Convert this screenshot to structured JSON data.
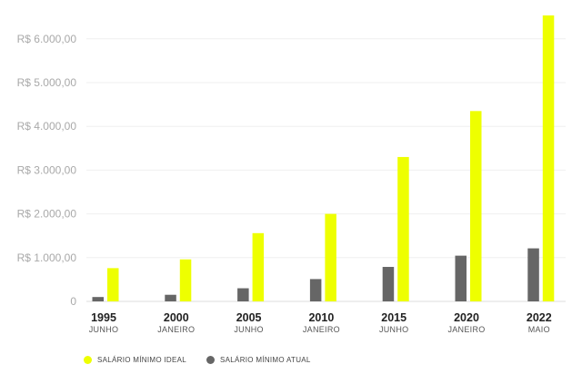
{
  "chart_data": {
    "type": "bar",
    "categories": [
      "1995",
      "2000",
      "2005",
      "2010",
      "2015",
      "2020",
      "2022"
    ],
    "category_sublabels": [
      "JUNHO",
      "JANEIRO",
      "JUNHO",
      "JANEIRO",
      "JUNHO",
      "JANEIRO",
      "MAIO"
    ],
    "series": [
      {
        "name": "SALÁRIO MÍNIMO ATUAL",
        "color": "#666666",
        "values": [
          100,
          151,
          300,
          510,
          788,
          1045,
          1212
        ]
      },
      {
        "name": "SALÁRIO MÍNIMO IDEAL",
        "color": "#eeff00",
        "values": [
          760,
          960,
          1560,
          2000,
          3300,
          4350,
          6535
        ]
      }
    ],
    "y_ticks": [
      0,
      1000,
      2000,
      3000,
      4000,
      5000,
      6000
    ],
    "y_tick_labels": [
      "0",
      "R$ 1.000,00",
      "R$ 2.000,00",
      "R$ 3.000,00",
      "R$ 4.000,00",
      "R$ 5.000,00",
      "R$ 6.000,00"
    ],
    "ylim": [
      0,
      6600
    ],
    "grid": true,
    "legend_position": "bottom-left"
  },
  "legend": [
    {
      "label": "SALÁRIO MÍNIMO IDEAL",
      "color": "#eeff00"
    },
    {
      "label": "SALÁRIO MÍNIMO ATUAL",
      "color": "#666666"
    }
  ]
}
